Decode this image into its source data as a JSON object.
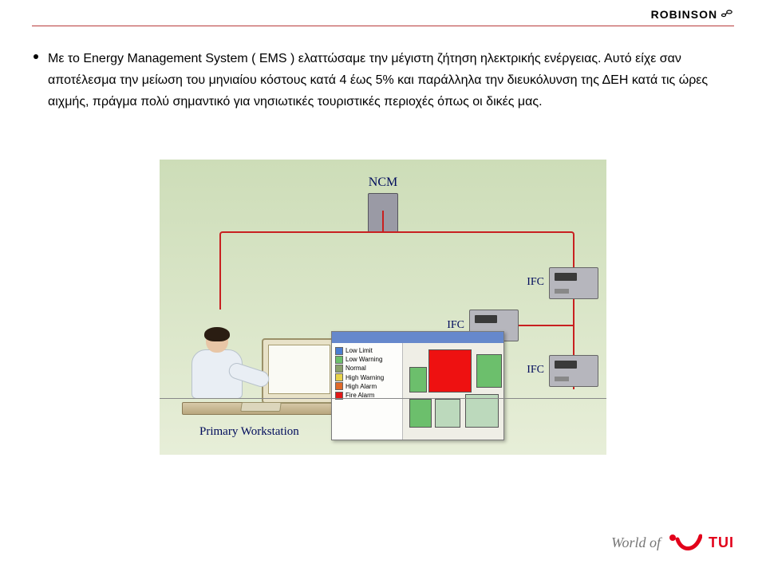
{
  "header": {
    "brand": "ROBINSON"
  },
  "paragraph": {
    "text": "Με το  Energy Management System ( EMS ) ελαττώσαμε την μέγιστη ζήτηση ηλεκτρικής ενέργειας. Αυτό είχε σαν αποτέλεσμα την μείωση του μηνιαίου κόστους κατά 4 έως 5% και παράλληλα την διευκόλυνση της ΔΕΗ κατά τις ώρες αιχμής, πράγμα πολύ σημαντικό για νησιωτικές τουριστικές περιοχές όπως οι δικές μας."
  },
  "figure": {
    "ncm_label": "NCM",
    "ifc_label": "IFC",
    "workstation_label": "Primary Workstation",
    "legend_items": [
      {
        "label": "Low Limit",
        "color": "#4a7dd1"
      },
      {
        "label": "Low Warning",
        "color": "#6cbf6c"
      },
      {
        "label": "Normal",
        "color": "#8aa06c"
      },
      {
        "label": "High Warning",
        "color": "#e8d24a"
      },
      {
        "label": "High Alarm",
        "color": "#e06a2a"
      },
      {
        "label": "Fire Alarm",
        "color": "#e11818"
      }
    ],
    "wire_color": "#c82020",
    "bg_gradient_top": "#cdddb8",
    "bg_gradient_bottom": "#e7eed8"
  },
  "footer": {
    "text_prefix": "World of",
    "tui_text": "TUI",
    "tui_red": "#e2001a"
  }
}
